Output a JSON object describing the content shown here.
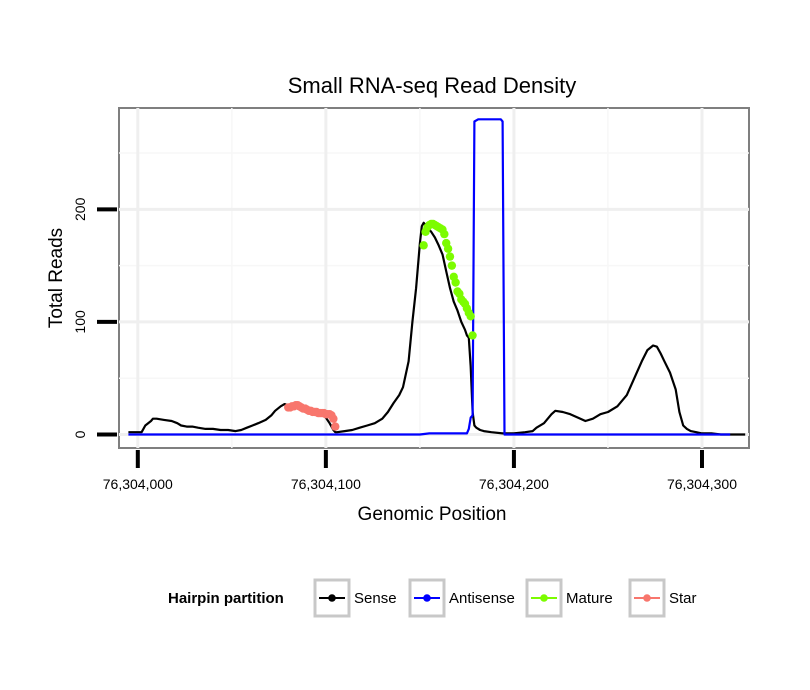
{
  "chart_data": {
    "type": "line",
    "title": "Small RNA-seq Read Density",
    "xlabel": "Genomic Position",
    "ylabel": "Total Reads",
    "xlim": [
      76303990,
      76304325
    ],
    "ylim": [
      -12,
      290
    ],
    "x_ticks": [
      76304000,
      76304100,
      76304200,
      76304300
    ],
    "x_tick_labels": [
      "76,304,000",
      "76,304,100",
      "76,304,200",
      "76,304,300"
    ],
    "y_ticks": [
      0,
      100,
      200
    ],
    "y_tick_labels": [
      "0",
      "100",
      "200"
    ],
    "grid": true,
    "legend": {
      "title": "Hairpin partition",
      "position": "bottom",
      "entries": [
        {
          "label": "Sense",
          "color": "#000000"
        },
        {
          "label": "Antisense",
          "color": "#0000ff"
        },
        {
          "label": "Mature",
          "color": "#7cfc00"
        },
        {
          "label": "Star",
          "color": "#f8766d"
        }
      ]
    },
    "series": [
      {
        "name": "Sense",
        "color": "#000000",
        "style": "line",
        "x": [
          76303995,
          76304002,
          76304004,
          76304007,
          76304008,
          76304010,
          76304014,
          76304018,
          76304021,
          76304023,
          76304026,
          76304029,
          76304032,
          76304036,
          76304040,
          76304044,
          76304048,
          76304052,
          76304055,
          76304058,
          76304061,
          76304064,
          76304068,
          76304071,
          76304073,
          76304076,
          76304078,
          76304080,
          76304082,
          76304085,
          76304088,
          76304092,
          76304095,
          76304098,
          76304100,
          76304102,
          76304104,
          76304105,
          76304106,
          76304110,
          76304114,
          76304118,
          76304122,
          76304126,
          76304130,
          76304133,
          76304136,
          76304139,
          76304141,
          76304144,
          76304146,
          76304148,
          76304150,
          76304151,
          76304152,
          76304153,
          76304154,
          76304156,
          76304158,
          76304160,
          76304162,
          76304164,
          76304166,
          76304168,
          76304170,
          76304172,
          76304174,
          76304175,
          76304176,
          76304177,
          76304178,
          76304179,
          76304180,
          76304182,
          76304184,
          76304188,
          76304194,
          76304200,
          76304206,
          76304210,
          76304212,
          76304216,
          76304220,
          76304222,
          76304226,
          76304230,
          76304234,
          76304238,
          76304242,
          76304246,
          76304250,
          76304255,
          76304260,
          76304264,
          76304268,
          76304271,
          76304274,
          76304276,
          76304278,
          76304280,
          76304283,
          76304286,
          76304288,
          76304290,
          76304292,
          76304294,
          76304297,
          76304300,
          76304305,
          76304310,
          76304315,
          76304318,
          76304323
        ],
        "y": [
          2,
          2,
          8,
          12,
          14,
          14,
          13,
          12,
          10,
          8,
          7,
          7,
          6,
          5,
          5,
          4,
          4,
          3,
          4,
          6,
          8,
          10,
          13,
          17,
          21,
          25,
          27,
          26,
          25,
          23,
          22,
          21,
          20,
          18,
          15,
          10,
          4,
          2,
          2,
          3,
          4,
          6,
          8,
          10,
          14,
          20,
          28,
          35,
          42,
          65,
          100,
          130,
          170,
          185,
          188,
          186,
          184,
          180,
          175,
          168,
          160,
          145,
          130,
          118,
          110,
          100,
          93,
          88,
          86,
          60,
          20,
          8,
          6,
          4,
          3,
          2,
          1,
          1,
          2,
          3,
          6,
          10,
          18,
          21,
          20,
          18,
          15,
          12,
          14,
          18,
          20,
          25,
          35,
          50,
          65,
          75,
          79,
          78,
          72,
          65,
          55,
          40,
          20,
          8,
          5,
          3,
          2,
          1,
          1,
          0,
          0,
          0,
          0
        ]
      },
      {
        "name": "Antisense",
        "color": "#0000ff",
        "style": "line",
        "x": [
          76303995,
          76304050,
          76304100,
          76304150,
          76304155,
          76304164,
          76304170,
          76304175,
          76304176,
          76304177,
          76304178,
          76304179,
          76304181,
          76304190,
          76304193,
          76304194,
          76304195,
          76304250,
          76304300,
          76304315
        ],
        "y": [
          0,
          0,
          0,
          0,
          1,
          1,
          1,
          1,
          5,
          15,
          17,
          278,
          280,
          280,
          280,
          278,
          0,
          0,
          0,
          0
        ]
      },
      {
        "name": "Mature",
        "color": "#7cfc00",
        "style": "points",
        "x": [
          76304152,
          76304153,
          76304154,
          76304155,
          76304156,
          76304157,
          76304158,
          76304159,
          76304160,
          76304161,
          76304162,
          76304163,
          76304164,
          76304165,
          76304166,
          76304167,
          76304168,
          76304169,
          76304170,
          76304171,
          76304172,
          76304173,
          76304174,
          76304175,
          76304176,
          76304177,
          76304178
        ],
        "y": [
          168,
          180,
          184,
          186,
          187,
          187,
          186,
          185,
          184,
          183,
          182,
          178,
          170,
          165,
          158,
          150,
          140,
          135,
          127,
          125,
          120,
          118,
          116,
          112,
          108,
          105,
          88
        ]
      },
      {
        "name": "Star",
        "color": "#f8766d",
        "style": "points",
        "x": [
          76304080,
          76304081,
          76304082,
          76304083,
          76304084,
          76304085,
          76304086,
          76304087,
          76304088,
          76304089,
          76304090,
          76304091,
          76304092,
          76304093,
          76304094,
          76304095,
          76304096,
          76304097,
          76304098,
          76304099,
          76304100,
          76304101,
          76304102,
          76304103,
          76304104,
          76304105
        ],
        "y": [
          24,
          24,
          25,
          25,
          26,
          26,
          25,
          24,
          23,
          23,
          22,
          21,
          21,
          20,
          20,
          20,
          19,
          19,
          19,
          19,
          18,
          18,
          18,
          17,
          14,
          7
        ]
      }
    ]
  }
}
